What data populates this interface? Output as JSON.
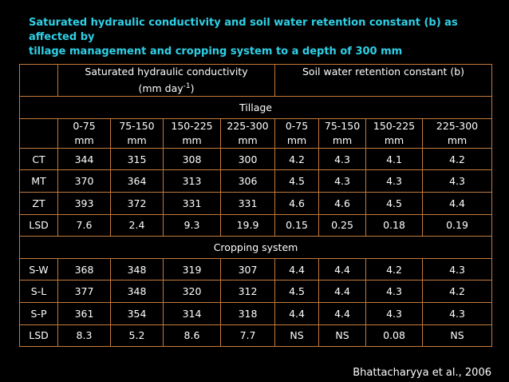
{
  "title_line1": "Saturated hydraulic conductivity and soil water retention constant (b) as affected by",
  "title_line2": "tillage management and cropping system to a depth of 300 mm",
  "header": {
    "ksat_label": "Saturated hydraulic conductivity",
    "ksat_unit_pre": "(mm day",
    "ksat_unit_sup": "-1",
    "ksat_unit_post": ")",
    "b_label": "Soil water retention constant (b)"
  },
  "sections": {
    "tillage": "Tillage",
    "cropping": "Cropping system"
  },
  "depth_ranges": [
    {
      "top": "0-75",
      "bottom": "mm"
    },
    {
      "top": "75-150",
      "bottom": "mm"
    },
    {
      "top": "150-225",
      "bottom": "mm"
    },
    {
      "top": "225-300",
      "bottom": "mm"
    },
    {
      "top": "0-75",
      "bottom": "mm"
    },
    {
      "top": "75-150",
      "bottom": "mm"
    },
    {
      "top": "150-225",
      "bottom": "mm"
    },
    {
      "top": "225-300",
      "bottom": "mm"
    }
  ],
  "tillage_rows": [
    {
      "label": "CT",
      "values": [
        "344",
        "315",
        "308",
        "300",
        "4.2",
        "4.3",
        "4.1",
        "4.2"
      ]
    },
    {
      "label": "MT",
      "values": [
        "370",
        "364",
        "313",
        "306",
        "4.5",
        "4.3",
        "4.3",
        "4.3"
      ]
    },
    {
      "label": "ZT",
      "values": [
        "393",
        "372",
        "331",
        "331",
        "4.6",
        "4.6",
        "4.5",
        "4.4"
      ]
    },
    {
      "label": "LSD",
      "values": [
        "7.6",
        "2.4",
        "9.3",
        "19.9",
        "0.15",
        "0.25",
        "0.18",
        "0.19"
      ]
    }
  ],
  "cropping_rows": [
    {
      "label": "S-W",
      "values": [
        "368",
        "348",
        "319",
        "307",
        "4.4",
        "4.4",
        "4.2",
        "4.3"
      ]
    },
    {
      "label": "S-L",
      "values": [
        "377",
        "348",
        "320",
        "312",
        "4.5",
        "4.4",
        "4.3",
        "4.2"
      ]
    },
    {
      "label": "S-P",
      "values": [
        "361",
        "354",
        "314",
        "318",
        "4.4",
        "4.4",
        "4.3",
        "4.3"
      ]
    },
    {
      "label": "LSD",
      "values": [
        "8.3",
        "5.2",
        "8.6",
        "7.7",
        "NS",
        "NS",
        "0.08",
        "NS"
      ]
    }
  ],
  "citation": "Bhattacharyya et al., 2006",
  "colors": {
    "title": "#2fd0e6",
    "border": "#c47a3c",
    "background": "#000000",
    "text": "#ffffff"
  }
}
